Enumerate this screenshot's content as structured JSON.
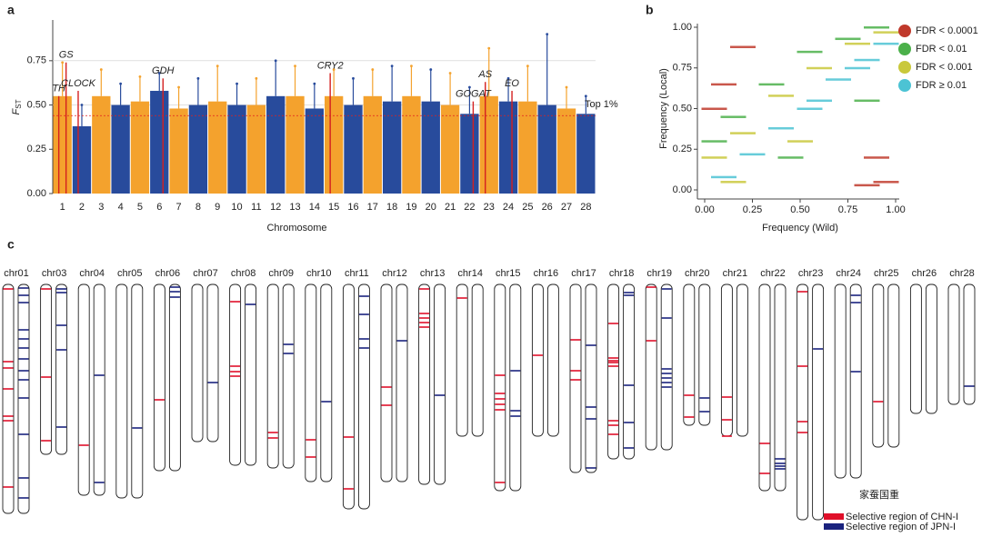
{
  "panels": {
    "a": "a",
    "b": "b",
    "c": "c"
  },
  "chart_data": [
    {
      "type": "manhattan",
      "xlabel": "Chromosome",
      "ylabel": {
        "main": "F",
        "sub": "ST"
      },
      "categories": [
        "1",
        "2",
        "3",
        "4",
        "5",
        "6",
        "7",
        "8",
        "9",
        "10",
        "11",
        "12",
        "13",
        "14",
        "15",
        "16",
        "17",
        "18",
        "19",
        "20",
        "21",
        "22",
        "23",
        "24",
        "25",
        "26",
        "27",
        "28"
      ],
      "bulk": [
        0.55,
        0.38,
        0.55,
        0.5,
        0.52,
        0.58,
        0.48,
        0.5,
        0.52,
        0.5,
        0.5,
        0.55,
        0.55,
        0.48,
        0.55,
        0.5,
        0.55,
        0.52,
        0.55,
        0.52,
        0.5,
        0.45,
        0.55,
        0.52,
        0.52,
        0.5,
        0.48,
        0.45
      ],
      "max": [
        0.74,
        0.5,
        0.7,
        0.62,
        0.66,
        0.68,
        0.6,
        0.65,
        0.72,
        0.62,
        0.65,
        0.75,
        0.72,
        0.62,
        0.7,
        0.65,
        0.7,
        0.72,
        0.72,
        0.7,
        0.68,
        0.6,
        0.82,
        0.65,
        0.72,
        0.9,
        0.6,
        0.55
      ],
      "colors": [
        "#f4a22d",
        "#284b9c"
      ],
      "ylim": [
        0,
        0.98
      ],
      "yticks": [
        {
          "value": 0,
          "label": "0.00"
        },
        {
          "value": 0.25,
          "label": "0.25"
        },
        {
          "value": 0.5,
          "label": "0.50"
        },
        {
          "value": 0.75,
          "label": "0.75"
        }
      ],
      "guide_lines": [
        0.5,
        0.75
      ],
      "threshold": {
        "label": "Top 1%",
        "value": 0.44,
        "color": "#e02020"
      },
      "annotations": [
        {
          "label": "TH",
          "x": "1",
          "value": 0.55
        },
        {
          "label": "GS",
          "x": "1",
          "value": 0.74
        },
        {
          "label": "CLOCK",
          "x": "2",
          "value": 0.58
        },
        {
          "label": "GDH",
          "x": "6",
          "value": 0.65
        },
        {
          "label": "CRY2",
          "x": "15",
          "value": 0.68
        },
        {
          "label": "GOGAT",
          "x": "22",
          "value": 0.52
        },
        {
          "label": "AS",
          "x": "23",
          "value": 0.63
        },
        {
          "label": "EO",
          "x": "24",
          "value": 0.58
        }
      ],
      "annotation_color": "#d42020"
    },
    {
      "type": "scatter",
      "xlabel": "Frequency (Wild)",
      "ylabel": "Frequency (Local)",
      "xlim": [
        0,
        1
      ],
      "ylim": [
        0,
        1
      ],
      "xticks": [
        {
          "value": 0,
          "label": "0.00"
        },
        {
          "value": 0.25,
          "label": "0.25"
        },
        {
          "value": 0.5,
          "label": "0.50"
        },
        {
          "value": 0.75,
          "label": "0.75"
        },
        {
          "value": 1,
          "label": "1.00"
        }
      ],
      "yticks": [
        {
          "value": 0,
          "label": "0.00"
        },
        {
          "value": 0.25,
          "label": "0.25"
        },
        {
          "value": 0.5,
          "label": "0.50"
        },
        {
          "value": 0.75,
          "label": "0.75"
        },
        {
          "value": 1,
          "label": "1.00"
        }
      ],
      "legend": "right",
      "series": [
        {
          "name": "FDR < 0.0001",
          "color": "#c0392b",
          "x": [
            0.05,
            0.1,
            0.2,
            0.85,
            0.95,
            0.9
          ],
          "values": [
            0.5,
            0.65,
            0.88,
            0.03,
            0.05,
            0.2
          ]
        },
        {
          "name": "FDR < 0.01",
          "color": "#4bb04a",
          "x": [
            0.05,
            0.15,
            0.35,
            0.55,
            0.75,
            0.9,
            0.45,
            0.85
          ],
          "values": [
            0.3,
            0.45,
            0.65,
            0.85,
            0.93,
            1.0,
            0.2,
            0.55
          ]
        },
        {
          "name": "FDR < 0.001",
          "color": "#c9c83b",
          "x": [
            0.05,
            0.2,
            0.4,
            0.6,
            0.8,
            0.95,
            0.15,
            0.5
          ],
          "values": [
            0.2,
            0.35,
            0.58,
            0.75,
            0.9,
            0.97,
            0.05,
            0.3
          ]
        },
        {
          "name": "FDR ≥ 0.01",
          "color": "#4cc3d4",
          "x": [
            0.1,
            0.25,
            0.4,
            0.55,
            0.7,
            0.85,
            0.95,
            0.6,
            0.8
          ],
          "values": [
            0.08,
            0.22,
            0.38,
            0.5,
            0.68,
            0.8,
            0.9,
            0.55,
            0.75
          ]
        }
      ]
    }
  ],
  "ideogram": {
    "chn_label": "Selective region of CHN-I",
    "chn_color": "#e0102a",
    "jpn_label": "Selective region of JPN-I",
    "jpn_color": "#1a237e",
    "watermark": "家蚕国重",
    "chromosomes": [
      {
        "name": "chr01",
        "length": 25.2,
        "chn": [
          0.5,
          8.5,
          9.2,
          11.5,
          14.5,
          15,
          22.3
        ],
        "jpn": [
          0.4,
          1.2,
          2.0,
          5.0,
          6.0,
          7.0,
          8.2,
          9.5,
          10.5,
          12.5,
          16.5,
          21.3,
          23.5
        ]
      },
      {
        "name": "chr03",
        "length": 18.7,
        "chn": [
          0.5,
          10.2,
          17.2
        ],
        "jpn": [
          0.5,
          0.9,
          4.5,
          7.2,
          15.7
        ]
      },
      {
        "name": "chr04",
        "length": 23.2,
        "chn": [
          17.7
        ],
        "jpn": [
          10.0,
          21.8
        ]
      },
      {
        "name": "chr05",
        "length": 23.5,
        "chn": [],
        "jpn": [
          15.8
        ]
      },
      {
        "name": "chr06",
        "length": 20.5,
        "chn": [
          12.7
        ],
        "jpn": [
          0.3,
          0.8,
          1.4
        ]
      },
      {
        "name": "chr07",
        "length": 17.3,
        "chn": [],
        "jpn": [
          10.8
        ]
      },
      {
        "name": "chr08",
        "length": 19.9,
        "chn": [
          1.9,
          9.0,
          9.6,
          10.1
        ],
        "jpn": [
          2.2
        ]
      },
      {
        "name": "chr09",
        "length": 20.2,
        "chn": [
          16.3,
          16.9
        ],
        "jpn": [
          6.6,
          7.6
        ]
      },
      {
        "name": "chr10",
        "length": 21.7,
        "chn": [
          17.1,
          19.0
        ],
        "jpn": [
          12.9
        ]
      },
      {
        "name": "chr11",
        "length": 24.7,
        "chn": [
          16.8,
          22.5
        ],
        "jpn": [
          1.3,
          3.3,
          6.0,
          7.0
        ]
      },
      {
        "name": "chr12",
        "length": 21.7,
        "chn": [
          11.3,
          13.3
        ],
        "jpn": [
          6.2
        ]
      },
      {
        "name": "chr13",
        "length": 22.0,
        "chn": [
          0.5,
          3.2,
          3.7,
          4.2,
          4.7
        ],
        "jpn": [
          12.2
        ]
      },
      {
        "name": "chr14",
        "length": 16.7,
        "chn": [
          1.5
        ],
        "jpn": []
      },
      {
        "name": "chr15",
        "length": 22.7,
        "chn": [
          10.0,
          12.0,
          12.6,
          13.2,
          13.8,
          21.8
        ],
        "jpn": [
          9.5,
          13.9,
          14.5
        ]
      },
      {
        "name": "chr16",
        "length": 16.7,
        "chn": [
          7.8
        ],
        "jpn": []
      },
      {
        "name": "chr17",
        "length": 20.7,
        "chn": [
          6.1,
          9.5,
          10.5
        ],
        "jpn": [
          6.7,
          13.5,
          14.8,
          20.2
        ]
      },
      {
        "name": "chr18",
        "length": 19.2,
        "chn": [
          4.3,
          8.1,
          8.4,
          8.6,
          9.0,
          15.0,
          15.5,
          16.5
        ],
        "jpn": [
          0.9,
          1.2,
          11.1,
          15.2,
          18.0
        ]
      },
      {
        "name": "chr19",
        "length": 18.2,
        "chn": [
          0.3,
          6.2
        ],
        "jpn": [
          0.5,
          3.7,
          9.3,
          9.8,
          10.3,
          10.8,
          11.3
        ]
      },
      {
        "name": "chr20",
        "length": 15.5,
        "chn": [
          12.2,
          14.6
        ],
        "jpn": [
          12.5,
          14.0
        ]
      },
      {
        "name": "chr21",
        "length": 16.7,
        "chn": [
          12.4,
          14.9,
          16.7
        ],
        "jpn": []
      },
      {
        "name": "chr22",
        "length": 22.7,
        "chn": [
          17.5,
          20.8
        ],
        "jpn": [
          19.2,
          19.7,
          20.0,
          20.3
        ]
      },
      {
        "name": "chr23",
        "length": 25.9,
        "chn": [
          0.8,
          9.0,
          15.1,
          16.3
        ],
        "jpn": [
          7.1
        ]
      },
      {
        "name": "chr24",
        "length": 21.3,
        "chn": [],
        "jpn": [
          1.2,
          2.0,
          9.6
        ]
      },
      {
        "name": "chr25",
        "length": 17.9,
        "chn": [
          12.9
        ],
        "jpn": []
      },
      {
        "name": "chr26",
        "length": 14.2,
        "chn": [],
        "jpn": []
      },
      {
        "name": "chr28",
        "length": 13.2,
        "chn": [],
        "jpn": [
          11.2
        ]
      }
    ]
  }
}
